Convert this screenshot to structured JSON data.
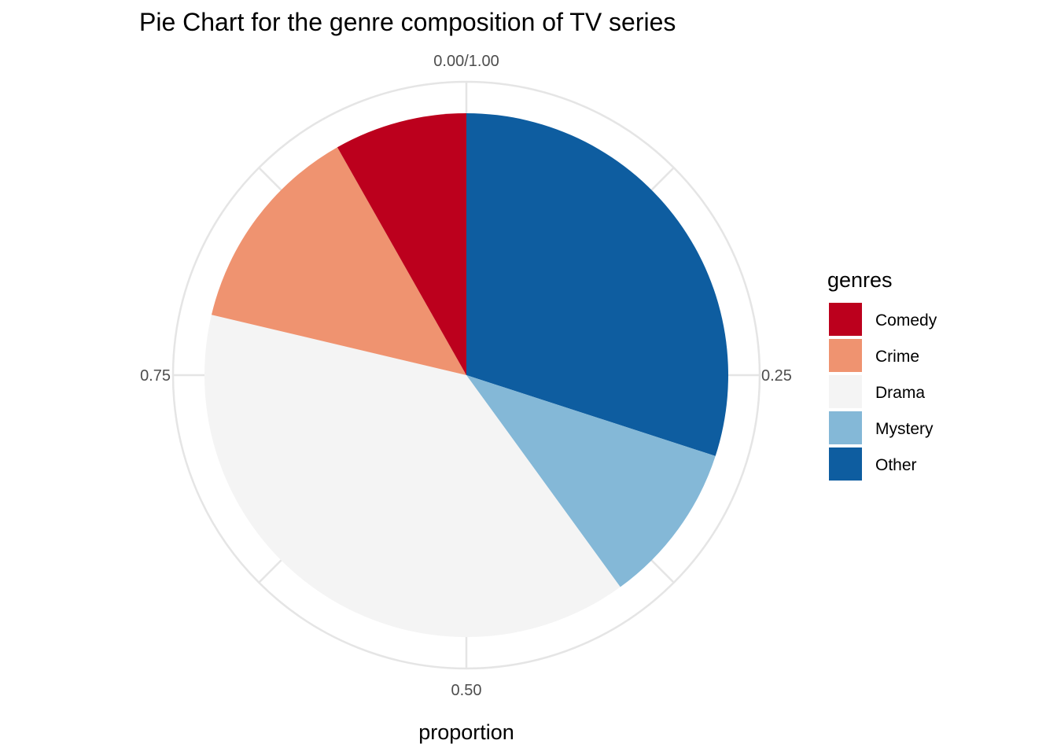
{
  "chart_data": {
    "type": "pie",
    "title": "Pie Chart for the genre composition of TV series",
    "xlabel": "proportion",
    "ylabel": "",
    "axis_ticks": [
      {
        "value": 0.0,
        "label": "0.00/1.00"
      },
      {
        "value": 0.25,
        "label": "0.25"
      },
      {
        "value": 0.5,
        "label": "0.50"
      },
      {
        "value": 0.75,
        "label": "0.75"
      }
    ],
    "grid": true,
    "legend": {
      "title": "genres",
      "position": "right"
    },
    "slices": [
      {
        "name": "Other",
        "value": 0.3,
        "color": "#0E5DA0"
      },
      {
        "name": "Mystery",
        "value": 0.1,
        "color": "#84B8D7"
      },
      {
        "name": "Drama",
        "value": 0.387,
        "color": "#F4F4F4"
      },
      {
        "name": "Crime",
        "value": 0.131,
        "color": "#EF9370"
      },
      {
        "name": "Comedy",
        "value": 0.082,
        "color": "#BC001D"
      }
    ],
    "legend_order": [
      "Comedy",
      "Crime",
      "Drama",
      "Mystery",
      "Other"
    ]
  }
}
